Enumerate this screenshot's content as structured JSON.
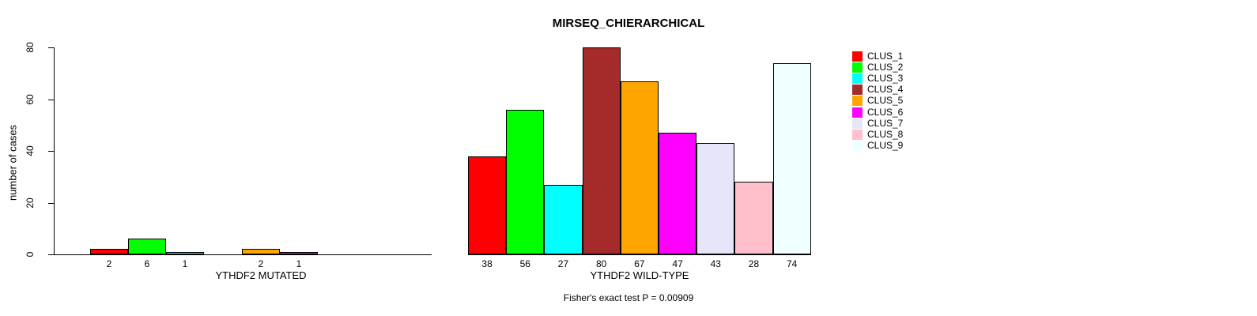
{
  "chart_data": {
    "type": "bar",
    "title": "MIRSEQ_CHIERARCHICAL",
    "ylabel": "number of cases",
    "ylim": [
      0,
      80
    ],
    "yticks": [
      0,
      20,
      40,
      60,
      80
    ],
    "grid": false,
    "legend_position": "right",
    "bar_value_labels": true,
    "categories": [
      "CLUS_1",
      "CLUS_2",
      "CLUS_3",
      "CLUS_4",
      "CLUS_5",
      "CLUS_6",
      "CLUS_7",
      "CLUS_8",
      "CLUS_9"
    ],
    "colors": [
      "#FF0000",
      "#00FF00",
      "#00FFFF",
      "#A52A2A",
      "#FFA500",
      "#FF00FF",
      "#E6E6FA",
      "#FFC0CB",
      "#F0FFFF"
    ],
    "series": [
      {
        "name": "YTHDF2 MUTATED",
        "values": [
          2,
          6,
          1,
          0,
          2,
          1,
          0,
          0,
          0
        ]
      },
      {
        "name": "YTHDF2 WILD-TYPE",
        "values": [
          38,
          56,
          27,
          80,
          67,
          47,
          43,
          28,
          74
        ]
      }
    ],
    "annotation": "Fisher's exact test P = 0.00909"
  }
}
